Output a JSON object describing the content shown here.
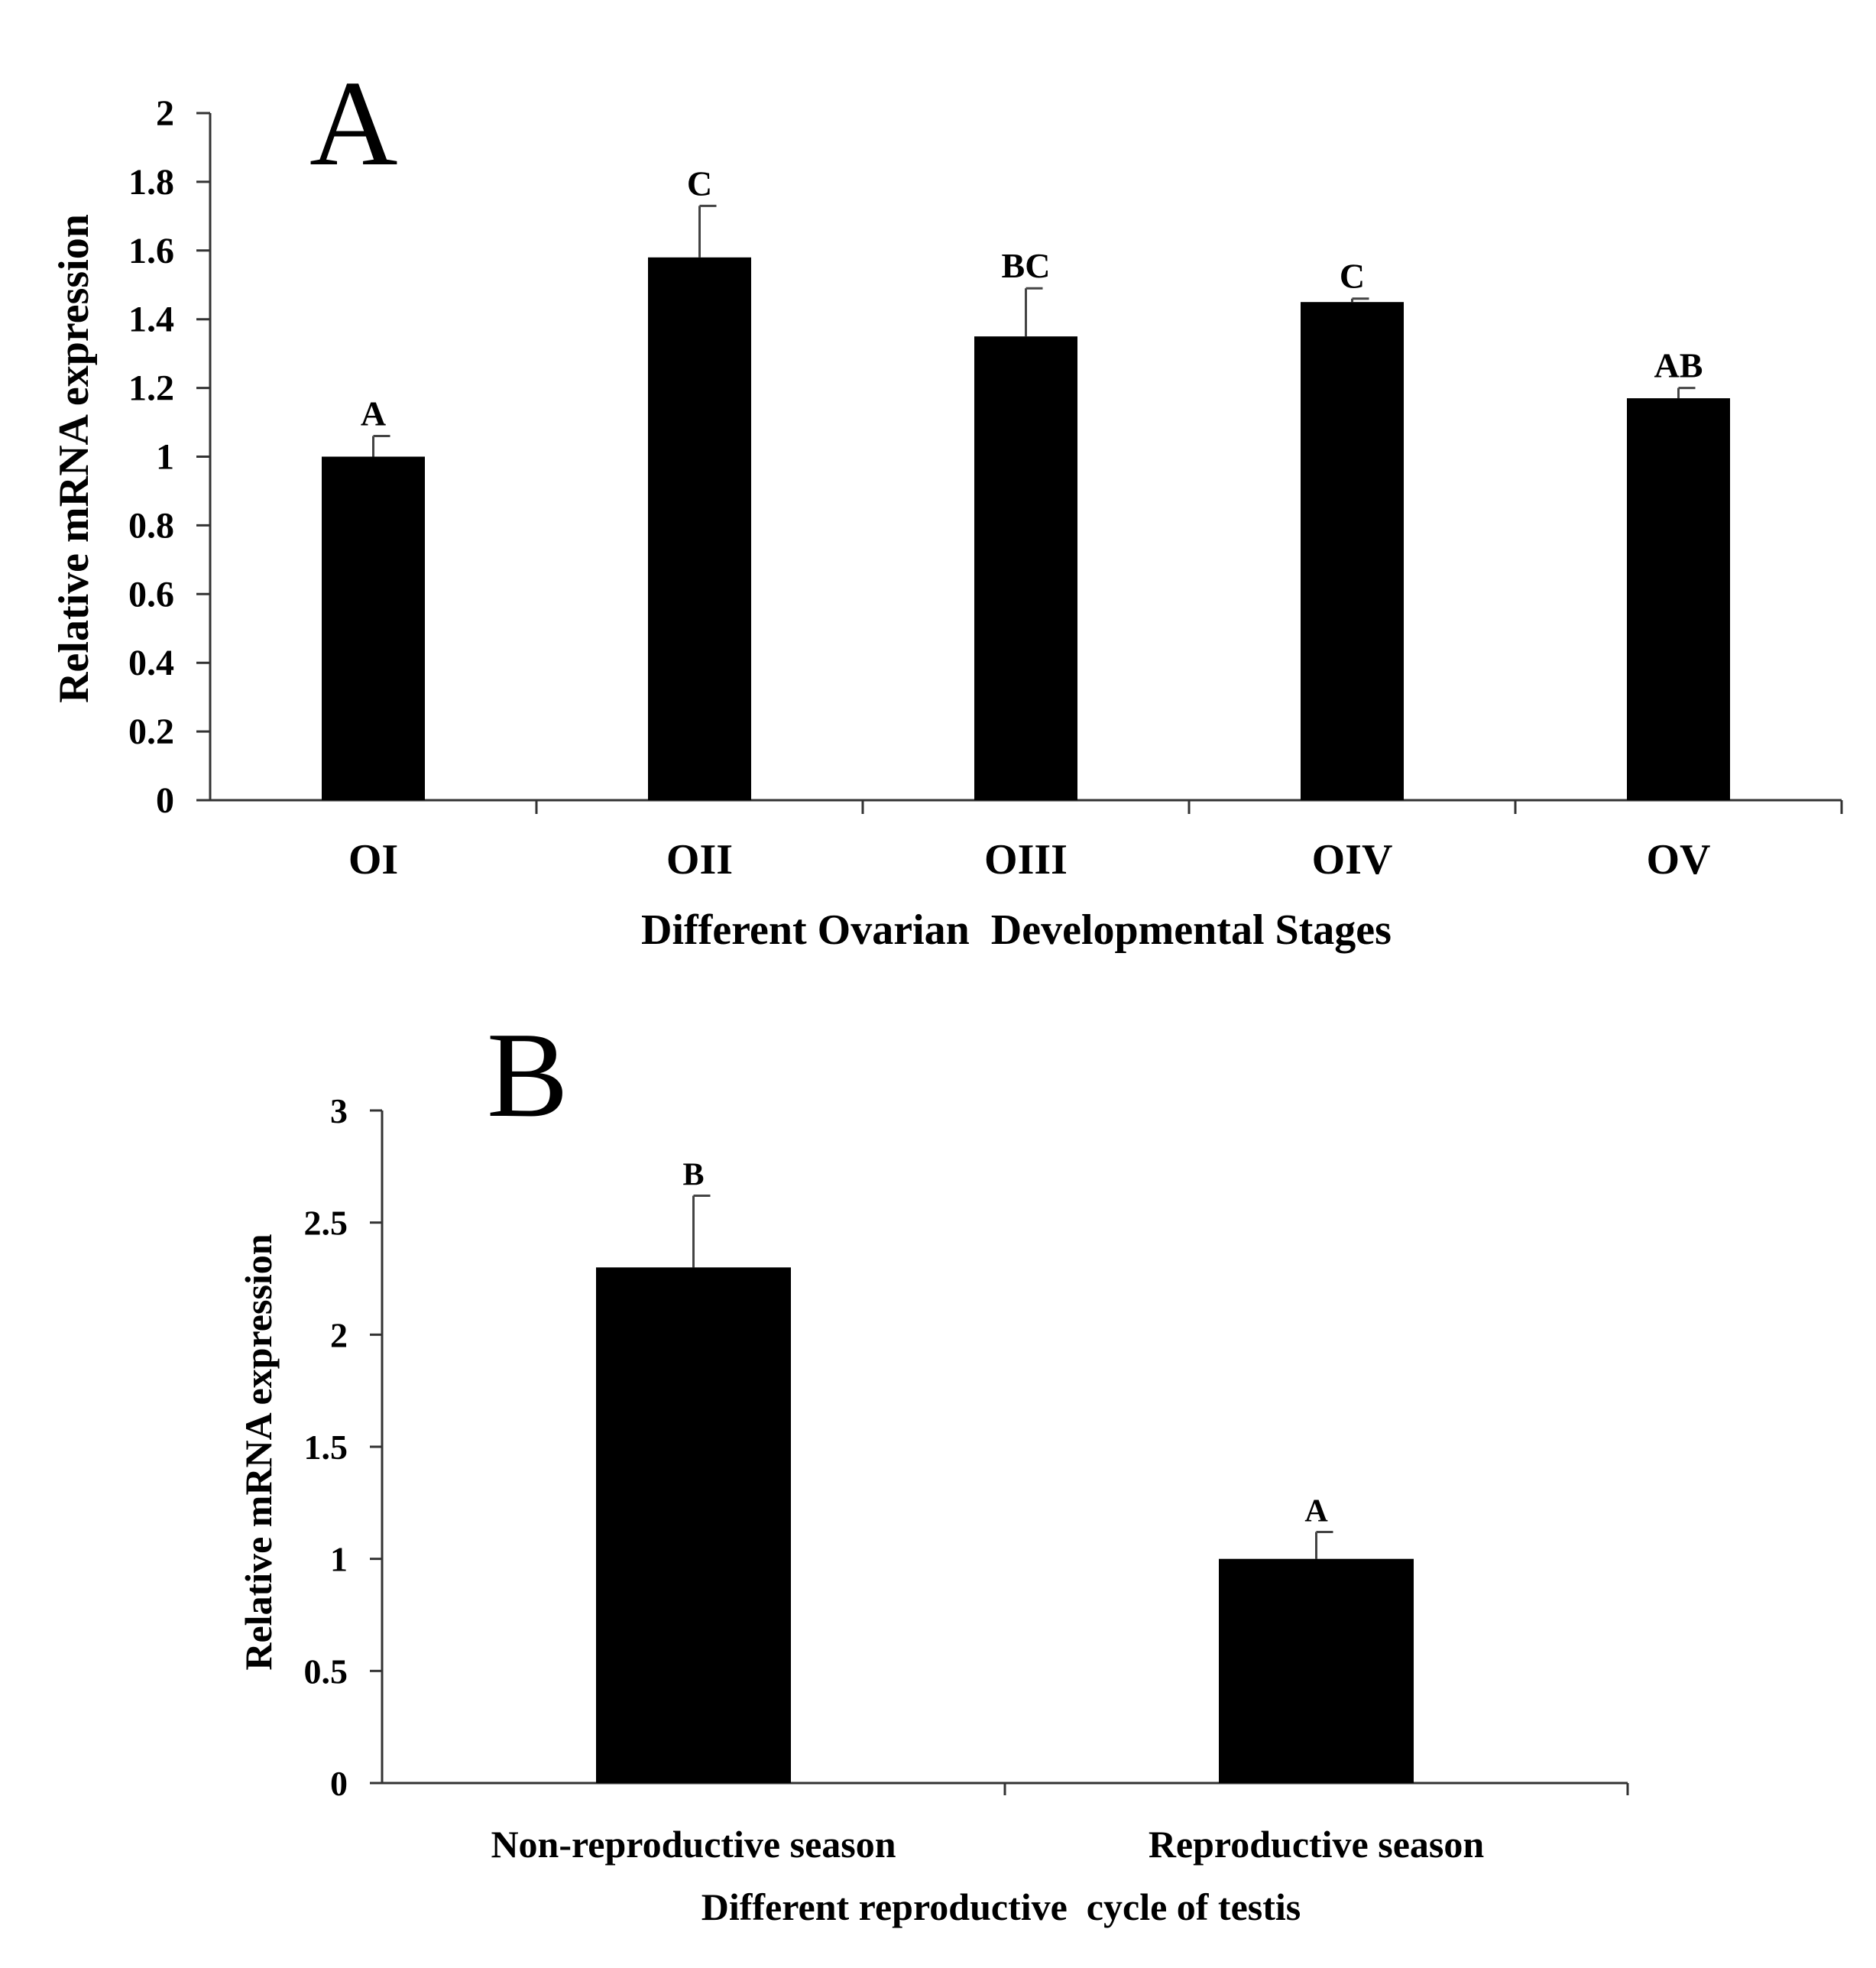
{
  "colors": {
    "background": "#ffffff",
    "bar": "#000000",
    "axis": "#333333",
    "error": "#444444"
  },
  "chart_data": [
    {
      "panel": "A",
      "type": "bar",
      "title": "",
      "categories": [
        "OI",
        "OII",
        "OIII",
        "OIV",
        "OV"
      ],
      "values": [
        1.0,
        1.58,
        1.35,
        1.45,
        1.17
      ],
      "errors": [
        0.06,
        0.15,
        0.14,
        0.01,
        0.03
      ],
      "significance": [
        "A",
        "C",
        "BC",
        "C",
        "AB"
      ],
      "xlabel": "Different Ovarian  Developmental Stages",
      "ylabel": "Relative mRNA expression",
      "ylim": [
        0,
        2
      ],
      "yticks": [
        0,
        0.2,
        0.4,
        0.6,
        0.8,
        1,
        1.2,
        1.4,
        1.6,
        1.8,
        2
      ],
      "ytick_labels": [
        "0",
        "0.2",
        "0.4",
        "0.6",
        "0.8",
        "1",
        "1.2",
        "1.4",
        "1.6",
        "1.8",
        "2"
      ],
      "grid": false,
      "legend": "none"
    },
    {
      "panel": "B",
      "type": "bar",
      "title": "",
      "categories": [
        "Non-reproductive season",
        "Reproductive season"
      ],
      "values": [
        2.3,
        1.0
      ],
      "errors": [
        0.32,
        0.12
      ],
      "significance": [
        "B",
        "A"
      ],
      "xlabel": "Different reproductive  cycle of testis",
      "ylabel": "Relative mRNA expression",
      "ylim": [
        0,
        3
      ],
      "yticks": [
        0,
        0.5,
        1,
        1.5,
        2,
        2.5,
        3
      ],
      "ytick_labels": [
        "0",
        "0.5",
        "1",
        "1.5",
        "2",
        "2.5",
        "3"
      ],
      "grid": false,
      "legend": "none"
    }
  ]
}
